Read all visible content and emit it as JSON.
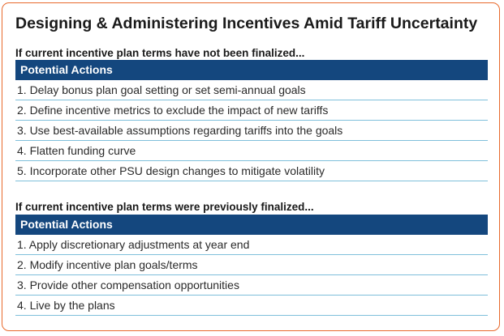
{
  "title": "Designing & Administering Incentives Amid Tariff Uncertainty",
  "sections": [
    {
      "heading": "If current incentive plan terms have not been finalized...",
      "bar_label": "Potential Actions",
      "actions": [
        "1. Delay bonus plan goal setting or set semi-annual goals",
        "2. Define incentive metrics to exclude the impact of new tariffs",
        "3. Use best-available assumptions regarding tariffs into the goals",
        "4. Flatten funding curve",
        "5. Incorporate other PSU design changes to mitigate volatility"
      ]
    },
    {
      "heading": "If current incentive plan terms were previously finalized...",
      "bar_label": "Potential Actions",
      "actions": [
        "1. Apply discretionary adjustments at year end",
        "2. Modify incentive plan goals/terms",
        "3. Provide other compensation opportunities",
        "4. Live by the plans"
      ]
    }
  ],
  "colors": {
    "border": "#e8692c",
    "header_bar": "#14477e",
    "row_divider": "#7fbfdb"
  }
}
